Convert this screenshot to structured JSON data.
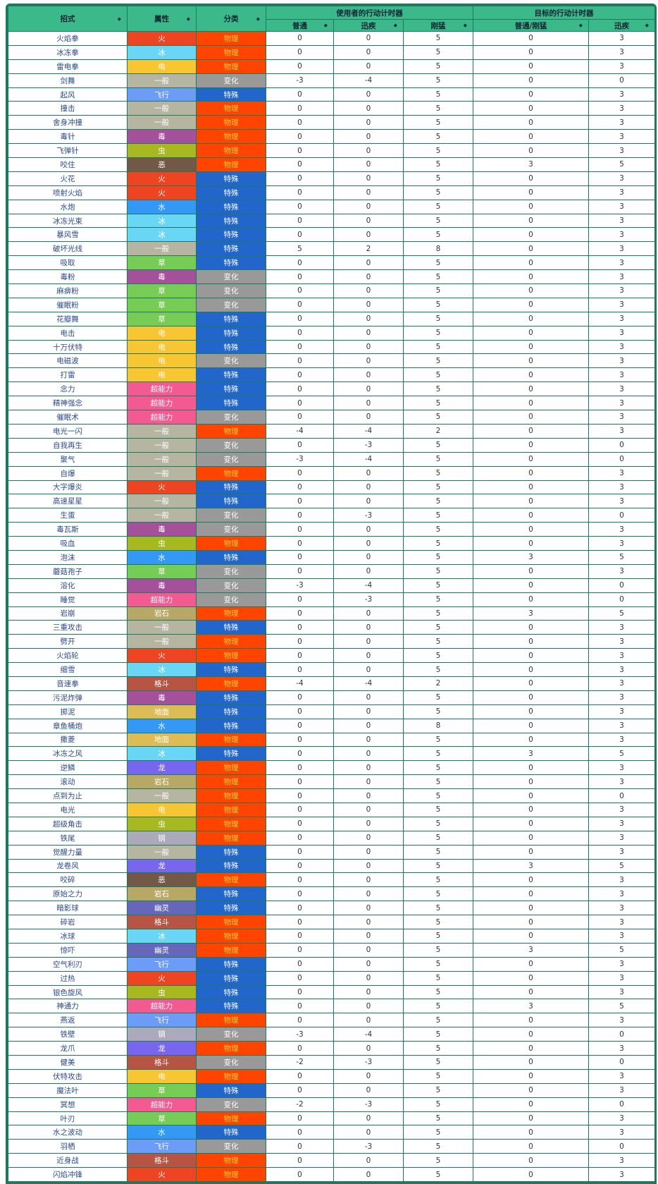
{
  "header": {
    "move": "招式",
    "type": "属性",
    "category": "分类",
    "user_group": "使用者的行动计时器",
    "target_group": "目标的行动计时器",
    "user_normal": "普通",
    "user_agile": "迅疾",
    "user_strong": "刚猛",
    "target_normal_strong": "普通/刚猛",
    "target_agile": "迅疾"
  },
  "type_colors": {
    "火": "#EE4422",
    "冰": "#6AD6F6",
    "电": "#F8C632",
    "一般": "#B5B5A2",
    "飞行": "#6C9CF8",
    "毒": "#A5509A",
    "虫": "#A8B820",
    "恶": "#735848",
    "水": "#3399F5",
    "草": "#77CC55",
    "超能力": "#F45A92",
    "岩石": "#B8A866",
    "格斗": "#B85444",
    "地面": "#DDBB55",
    "龙": "#7866EE",
    "钢": "#AAAABB",
    "幽灵": "#6666BB"
  },
  "category_colors": {
    "物理": "#FF4400",
    "特殊": "#2266CC",
    "变化": "#999999"
  },
  "rows": [
    [
      "火焰拳",
      "火",
      "物理",
      0,
      0,
      5,
      0,
      3
    ],
    [
      "冰冻拳",
      "冰",
      "物理",
      0,
      0,
      5,
      0,
      3
    ],
    [
      "雷电拳",
      "电",
      "物理",
      0,
      0,
      5,
      0,
      3
    ],
    [
      "剑舞",
      "一般",
      "变化",
      -3,
      -4,
      5,
      0,
      0
    ],
    [
      "起风",
      "飞行",
      "特殊",
      0,
      0,
      5,
      0,
      3
    ],
    [
      "撞击",
      "一般",
      "物理",
      0,
      0,
      5,
      0,
      3
    ],
    [
      "舍身冲撞",
      "一般",
      "物理",
      0,
      0,
      5,
      0,
      3
    ],
    [
      "毒针",
      "毒",
      "物理",
      0,
      0,
      5,
      0,
      3
    ],
    [
      "飞弹针",
      "虫",
      "物理",
      0,
      0,
      5,
      0,
      3
    ],
    [
      "咬住",
      "恶",
      "物理",
      0,
      0,
      5,
      3,
      5
    ],
    [
      "火花",
      "火",
      "特殊",
      0,
      0,
      5,
      0,
      3
    ],
    [
      "喷射火焰",
      "火",
      "特殊",
      0,
      0,
      5,
      0,
      3
    ],
    [
      "水炮",
      "水",
      "特殊",
      0,
      0,
      5,
      0,
      3
    ],
    [
      "冰冻光束",
      "冰",
      "特殊",
      0,
      0,
      5,
      0,
      3
    ],
    [
      "暴风雪",
      "冰",
      "特殊",
      0,
      0,
      5,
      0,
      3
    ],
    [
      "破坏光线",
      "一般",
      "特殊",
      5,
      2,
      8,
      0,
      3
    ],
    [
      "吸取",
      "草",
      "特殊",
      0,
      0,
      5,
      0,
      3
    ],
    [
      "毒粉",
      "毒",
      "变化",
      0,
      0,
      5,
      0,
      3
    ],
    [
      "麻痹粉",
      "草",
      "变化",
      0,
      0,
      5,
      0,
      3
    ],
    [
      "催眠粉",
      "草",
      "变化",
      0,
      0,
      5,
      0,
      3
    ],
    [
      "花瓣舞",
      "草",
      "特殊",
      0,
      0,
      5,
      0,
      3
    ],
    [
      "电击",
      "电",
      "特殊",
      0,
      0,
      5,
      0,
      3
    ],
    [
      "十万伏特",
      "电",
      "特殊",
      0,
      0,
      5,
      0,
      3
    ],
    [
      "电磁波",
      "电",
      "变化",
      0,
      0,
      5,
      0,
      3
    ],
    [
      "打雷",
      "电",
      "特殊",
      0,
      0,
      5,
      0,
      3
    ],
    [
      "念力",
      "超能力",
      "特殊",
      0,
      0,
      5,
      0,
      3
    ],
    [
      "精神强念",
      "超能力",
      "特殊",
      0,
      0,
      5,
      0,
      3
    ],
    [
      "催眠术",
      "超能力",
      "变化",
      0,
      0,
      5,
      0,
      3
    ],
    [
      "电光一闪",
      "一般",
      "物理",
      -4,
      -4,
      2,
      0,
      3
    ],
    [
      "自我再生",
      "一般",
      "变化",
      0,
      -3,
      5,
      0,
      0
    ],
    [
      "聚气",
      "一般",
      "变化",
      -3,
      -4,
      5,
      0,
      0
    ],
    [
      "自爆",
      "一般",
      "物理",
      0,
      0,
      5,
      0,
      3
    ],
    [
      "大字爆炎",
      "火",
      "特殊",
      0,
      0,
      5,
      0,
      3
    ],
    [
      "高速星星",
      "一般",
      "特殊",
      0,
      0,
      5,
      0,
      3
    ],
    [
      "生蛋",
      "一般",
      "变化",
      0,
      -3,
      5,
      0,
      0
    ],
    [
      "毒瓦斯",
      "毒",
      "变化",
      0,
      0,
      5,
      0,
      3
    ],
    [
      "吸血",
      "虫",
      "物理",
      0,
      0,
      5,
      0,
      3
    ],
    [
      "泡沫",
      "水",
      "特殊",
      0,
      0,
      5,
      3,
      5
    ],
    [
      "蘑菇孢子",
      "草",
      "变化",
      0,
      0,
      5,
      0,
      3
    ],
    [
      "溶化",
      "毒",
      "变化",
      -3,
      -4,
      5,
      0,
      0
    ],
    [
      "睡觉",
      "超能力",
      "变化",
      0,
      -3,
      5,
      0,
      0
    ],
    [
      "岩崩",
      "岩石",
      "物理",
      0,
      0,
      5,
      3,
      5
    ],
    [
      "三重攻击",
      "一般",
      "特殊",
      0,
      0,
      5,
      0,
      3
    ],
    [
      "劈开",
      "一般",
      "物理",
      0,
      0,
      5,
      0,
      3
    ],
    [
      "火焰轮",
      "火",
      "物理",
      0,
      0,
      5,
      0,
      3
    ],
    [
      "细雪",
      "冰",
      "特殊",
      0,
      0,
      5,
      0,
      3
    ],
    [
      "音速拳",
      "格斗",
      "物理",
      -4,
      -4,
      2,
      0,
      3
    ],
    [
      "污泥炸弹",
      "毒",
      "特殊",
      0,
      0,
      5,
      0,
      3
    ],
    [
      "掷泥",
      "地面",
      "特殊",
      0,
      0,
      5,
      0,
      3
    ],
    [
      "章鱼桶炮",
      "水",
      "特殊",
      0,
      0,
      8,
      0,
      3
    ],
    [
      "撒菱",
      "地面",
      "物理",
      0,
      0,
      5,
      0,
      3
    ],
    [
      "冰冻之风",
      "冰",
      "特殊",
      0,
      0,
      5,
      3,
      5
    ],
    [
      "逆鳞",
      "龙",
      "物理",
      0,
      0,
      5,
      0,
      3
    ],
    [
      "滚动",
      "岩石",
      "物理",
      0,
      0,
      5,
      0,
      3
    ],
    [
      "点到为止",
      "一般",
      "物理",
      0,
      0,
      5,
      0,
      0
    ],
    [
      "电光",
      "电",
      "物理",
      0,
      0,
      5,
      0,
      3
    ],
    [
      "超级角击",
      "虫",
      "物理",
      0,
      0,
      5,
      0,
      3
    ],
    [
      "铁尾",
      "钢",
      "物理",
      0,
      0,
      5,
      0,
      3
    ],
    [
      "觉醒力量",
      "一般",
      "特殊",
      0,
      0,
      5,
      0,
      3
    ],
    [
      "龙卷风",
      "龙",
      "特殊",
      0,
      0,
      5,
      3,
      5
    ],
    [
      "咬碎",
      "恶",
      "物理",
      0,
      0,
      5,
      0,
      3
    ],
    [
      "原始之力",
      "岩石",
      "特殊",
      0,
      0,
      5,
      0,
      3
    ],
    [
      "暗影球",
      "幽灵",
      "特殊",
      0,
      0,
      5,
      0,
      3
    ],
    [
      "碎岩",
      "格斗",
      "物理",
      0,
      0,
      5,
      0,
      3
    ],
    [
      "冰球",
      "冰",
      "物理",
      0,
      0,
      5,
      0,
      3
    ],
    [
      "惊吓",
      "幽灵",
      "物理",
      0,
      0,
      5,
      3,
      5
    ],
    [
      "空气利刃",
      "飞行",
      "特殊",
      0,
      0,
      5,
      0,
      3
    ],
    [
      "过热",
      "火",
      "特殊",
      0,
      0,
      5,
      0,
      3
    ],
    [
      "银色旋风",
      "虫",
      "特殊",
      0,
      0,
      5,
      0,
      3
    ],
    [
      "神通力",
      "超能力",
      "特殊",
      0,
      0,
      5,
      3,
      5
    ],
    [
      "燕返",
      "飞行",
      "物理",
      0,
      0,
      5,
      0,
      3
    ],
    [
      "铁壁",
      "钢",
      "变化",
      -3,
      -4,
      5,
      0,
      0
    ],
    [
      "龙爪",
      "龙",
      "物理",
      0,
      0,
      5,
      0,
      3
    ],
    [
      "健美",
      "格斗",
      "变化",
      -2,
      -3,
      5,
      0,
      0
    ],
    [
      "伏特攻击",
      "电",
      "物理",
      0,
      0,
      5,
      0,
      3
    ],
    [
      "魔法叶",
      "草",
      "特殊",
      0,
      0,
      5,
      0,
      3
    ],
    [
      "冥想",
      "超能力",
      "变化",
      -2,
      -3,
      5,
      0,
      0
    ],
    [
      "叶刃",
      "草",
      "物理",
      0,
      0,
      5,
      0,
      3
    ],
    [
      "水之波动",
      "水",
      "特殊",
      0,
      0,
      5,
      0,
      3
    ],
    [
      "羽栖",
      "飞行",
      "变化",
      0,
      -3,
      5,
      0,
      0
    ],
    [
      "近身战",
      "格斗",
      "物理",
      0,
      0,
      5,
      0,
      3
    ],
    [
      "闪焰冲锋",
      "火",
      "物理",
      0,
      0,
      5,
      0,
      3
    ]
  ]
}
